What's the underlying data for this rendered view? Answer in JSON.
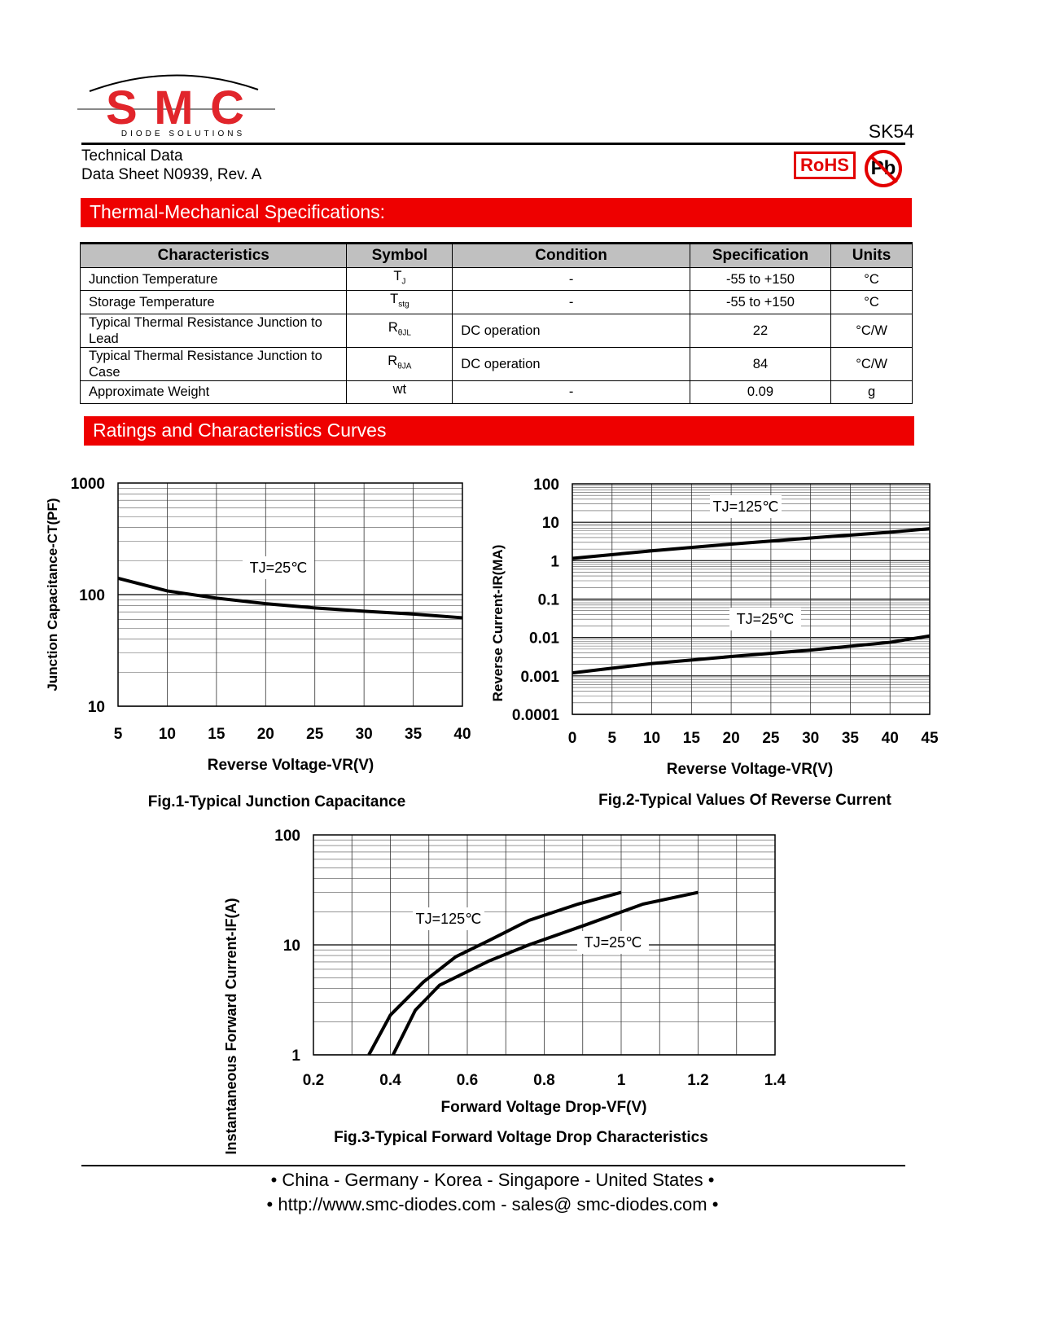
{
  "header": {
    "logo_text": "SMC",
    "logo_sub": "DIODE SOLUTIONS",
    "part_number": "SK54",
    "doc_type": "Technical Data",
    "doc_id": "Data Sheet N0939, Rev. A",
    "rohs": "RoHS",
    "pb": "Pb"
  },
  "thermal": {
    "title": "Thermal-Mechanical Specifications:",
    "columns": [
      "Characteristics",
      "Symbol",
      "Condition",
      "Specification",
      "Units"
    ],
    "rows": [
      {
        "char": "Junction Temperature",
        "sym": "T",
        "sub": "J",
        "cond": "-",
        "spec": "-55 to +150",
        "unit": "°C"
      },
      {
        "char": "Storage Temperature",
        "sym": "T",
        "sub": "stg",
        "cond": "-",
        "spec": "-55 to +150",
        "unit": "°C"
      },
      {
        "char": "Typical Thermal Resistance Junction to Lead",
        "sym": "R",
        "sub": "θJL",
        "cond": "DC operation",
        "spec": "22",
        "unit": "°C/W"
      },
      {
        "char": "Typical Thermal Resistance Junction to Case",
        "sym": "R",
        "sub": "θJA",
        "cond": "DC operation",
        "spec": "84",
        "unit": "°C/W"
      },
      {
        "char": "Approximate Weight",
        "sym": "wt",
        "sub": "",
        "cond": "-",
        "spec": "0.09",
        "unit": "g"
      }
    ]
  },
  "curves": {
    "title": "Ratings and Characteristics Curves"
  },
  "chart_data": [
    {
      "type": "line",
      "title": "Fig.1-Typical Junction Capacitance",
      "xlabel": "Reverse Voltage-VR(V)",
      "ylabel": "Junction Capacitance-CT(PF)",
      "xlim": [
        5,
        40
      ],
      "ylim": [
        10,
        1000
      ],
      "yscale": "log",
      "grid": true,
      "xticks": [
        "5",
        "10",
        "15",
        "20",
        "25",
        "30",
        "35",
        "40"
      ],
      "yticks": [
        "10",
        "100",
        "1000"
      ],
      "series": [
        {
          "name": "TJ=25℃",
          "x": [
            5,
            10,
            15,
            20,
            25,
            30,
            35,
            40
          ],
          "y": [
            140,
            108,
            93,
            83,
            76,
            71,
            67,
            62
          ]
        }
      ]
    },
    {
      "type": "line",
      "title": "Fig.2-Typical Values Of Reverse Current",
      "xlabel": "Reverse Voltage-VR(V)",
      "ylabel": "Reverse Current-IR(MA)",
      "xlim": [
        0,
        45
      ],
      "ylim": [
        0.0001,
        100
      ],
      "yscale": "log",
      "grid": true,
      "xticks": [
        "0",
        "5",
        "10",
        "15",
        "20",
        "25",
        "30",
        "35",
        "40",
        "45"
      ],
      "yticks": [
        "0.0001",
        "0.001",
        "0.01",
        "0.1",
        "1",
        "10",
        "100"
      ],
      "series": [
        {
          "name": "TJ=125℃",
          "x": [
            0,
            10,
            20,
            30,
            40,
            45
          ],
          "y": [
            1.15,
            1.8,
            2.7,
            3.9,
            5.5,
            6.8
          ]
        },
        {
          "name": "TJ=25℃",
          "x": [
            0,
            10,
            20,
            30,
            40,
            45
          ],
          "y": [
            0.0012,
            0.0021,
            0.0032,
            0.0047,
            0.0075,
            0.011
          ]
        }
      ]
    },
    {
      "type": "line",
      "title": "Fig.3-Typical Forward Voltage Drop Characteristics",
      "xlabel": "Forward Voltage Drop-VF(V)",
      "ylabel": "Instantaneous Forward Current-IF(A)",
      "xlim": [
        0.2,
        1.4
      ],
      "ylim": [
        1,
        100
      ],
      "yscale": "log",
      "grid": true,
      "xticks": [
        "0.2",
        "0.4",
        "0.6",
        "0.8",
        "1",
        "1.2",
        "1.4"
      ],
      "yticks": [
        "1",
        "10",
        "100"
      ],
      "series": [
        {
          "name": "TJ=125℃",
          "x": [
            0.344,
            0.4,
            0.486,
            0.57,
            0.655,
            0.76,
            0.888,
            1.0
          ],
          "y": [
            1,
            2.3,
            4.6,
            7.8,
            10.9,
            16.7,
            23.5,
            30
          ]
        },
        {
          "name": "TJ=25℃",
          "x": [
            0.407,
            0.465,
            0.528,
            0.655,
            0.76,
            0.91,
            1.057,
            1.2
          ],
          "y": [
            1,
            2.55,
            4.3,
            7.1,
            10,
            15.3,
            23.5,
            30
          ]
        }
      ]
    }
  ],
  "footer": {
    "line1": "• China  -  Germany  -  Korea  -  Singapore  -  United States •",
    "line2": "• http://www.smc-diodes.com  -  sales@ smc-diodes.com •"
  }
}
